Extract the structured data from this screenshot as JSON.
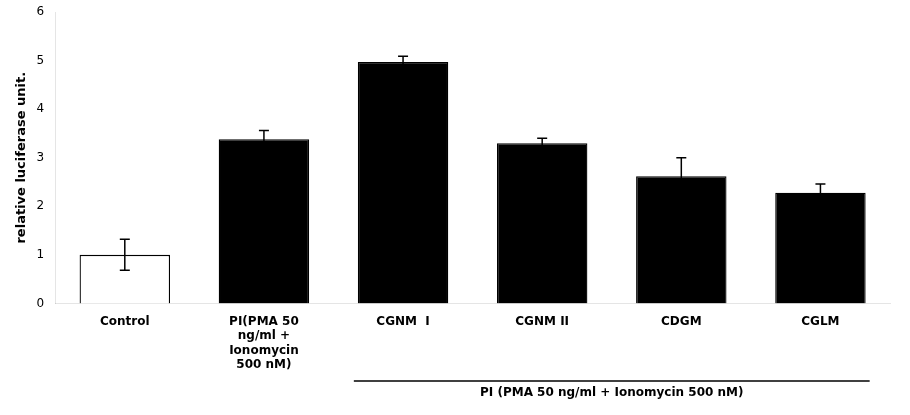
{
  "chart_data": {
    "type": "bar",
    "categories": [
      "Control",
      "PI(PMA 50\nng/ml +\nIonomycin\n500 nM)",
      "CGNM  I",
      "CGNM II",
      "CDGM",
      "CGLM"
    ],
    "values": [
      1.0,
      3.38,
      4.97,
      3.3,
      2.62,
      2.28
    ],
    "errors": [
      0.32,
      0.18,
      0.12,
      0.1,
      0.38,
      0.18
    ],
    "colors": [
      "white",
      "black",
      "black",
      "black",
      "black",
      "black"
    ],
    "ylabel": "relative luciferase unit.",
    "ylim": [
      0,
      6
    ],
    "yticks": [
      0,
      1,
      2,
      3,
      4,
      5,
      6
    ],
    "grid": false,
    "annotations": [
      {
        "text": "PI (PMA 50 ng/ml + Ionomycin 500 nM)",
        "from": "CGNM  I",
        "to": "CGLM"
      }
    ]
  }
}
